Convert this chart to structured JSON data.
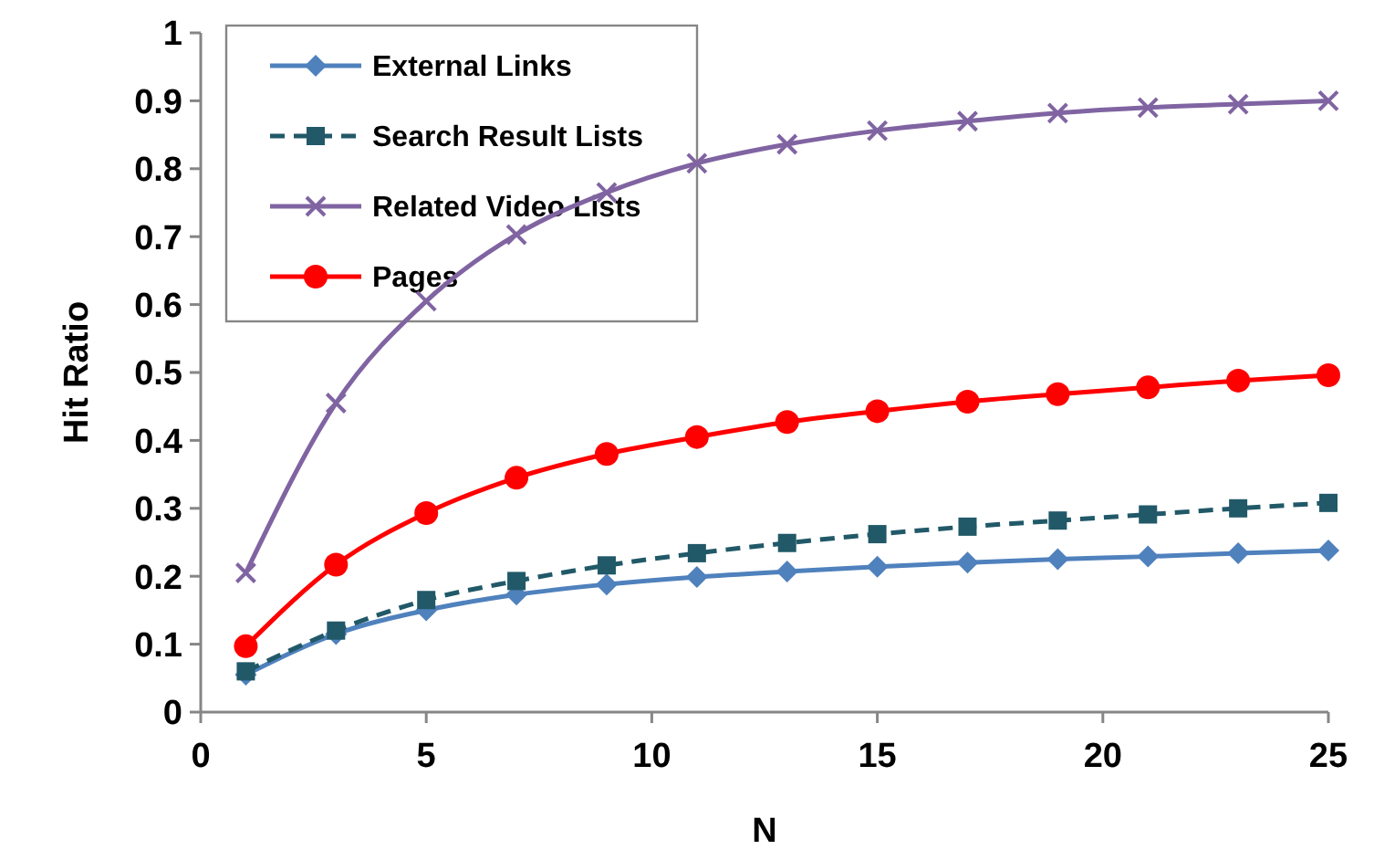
{
  "chart_data": {
    "type": "line",
    "xlabel": "N",
    "ylabel": "Hit Ratio",
    "x": [
      1,
      3,
      5,
      7,
      9,
      11,
      13,
      15,
      17,
      19,
      21,
      23,
      25
    ],
    "xlim": [
      0,
      25
    ],
    "xticks": [
      0,
      5,
      10,
      15,
      20,
      25
    ],
    "ylim": [
      0,
      1
    ],
    "yticks": [
      0,
      0.1,
      0.2,
      0.3,
      0.4,
      0.5,
      0.6,
      0.7,
      0.8,
      0.9,
      1
    ],
    "grid": false,
    "legend": "top left",
    "series": [
      {
        "name": "External Links",
        "color": "#4f81bd",
        "marker": "diamond",
        "line_style": "solid",
        "values": [
          0.055,
          0.115,
          0.15,
          0.173,
          0.188,
          0.199,
          0.207,
          0.214,
          0.22,
          0.225,
          0.229,
          0.234,
          0.238
        ]
      },
      {
        "name": "Search Result Lists",
        "color": "#215968",
        "marker": "square",
        "line_style": "dashed",
        "values": [
          0.06,
          0.12,
          0.165,
          0.193,
          0.216,
          0.234,
          0.249,
          0.262,
          0.273,
          0.282,
          0.291,
          0.3,
          0.308
        ]
      },
      {
        "name": "Related Video Lists",
        "color": "#8064a2",
        "marker": "cross",
        "line_style": "solid",
        "values": [
          0.205,
          0.455,
          0.605,
          0.703,
          0.765,
          0.808,
          0.836,
          0.856,
          0.87,
          0.882,
          0.89,
          0.895,
          0.9
        ]
      },
      {
        "name": "Pages",
        "color": "#ff0000",
        "marker": "circle",
        "line_style": "solid",
        "values": [
          0.097,
          0.217,
          0.293,
          0.345,
          0.38,
          0.405,
          0.427,
          0.443,
          0.457,
          0.468,
          0.478,
          0.488,
          0.496
        ]
      }
    ]
  }
}
